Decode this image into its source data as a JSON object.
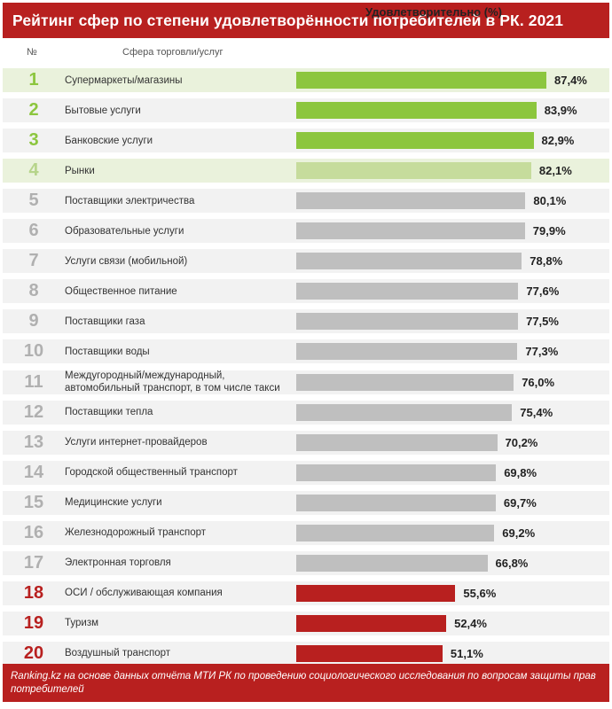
{
  "header": {
    "title": "Рейтинг сфер по степени удовлетворённости потребителей в РК. 2021"
  },
  "columns": {
    "number": "№",
    "category": "Сфера торговли/услуг",
    "value": "Удовлетворительно (%)"
  },
  "colors": {
    "header_bg": "#b8201f",
    "top_green": "#8cc63e",
    "light_green": "#c6dc9c",
    "gray_bar": "#bfbfbf",
    "red_bar": "#b8201f",
    "row_bg": "#f2f2f2",
    "row_bg_highlight": "#eaf2dc",
    "rank_green": "#8cc63e",
    "rank_light_green": "#b6d48a",
    "rank_gray": "#b0b0b0",
    "rank_red": "#b8201f"
  },
  "chart_data": {
    "type": "bar",
    "orientation": "horizontal",
    "title": "Рейтинг сфер по степени удовлетворённости потребителей в РК. 2021",
    "xlabel": "Удовлетворительно (%)",
    "ylabel": "Сфера торговли/услуг",
    "xlim": [
      0,
      100
    ],
    "grid": false,
    "ranks": [
      "1",
      "2",
      "3",
      "4",
      "5",
      "6",
      "7",
      "8",
      "9",
      "10",
      "11",
      "12",
      "13",
      "14",
      "15",
      "16",
      "17",
      "18",
      "19",
      "20"
    ],
    "categories": [
      "Супермаркеты/магазины",
      "Бытовые услуги",
      "Банковские услуги",
      "Рынки",
      "Поставщики электричества",
      "Образовательные услуги",
      "Услуги связи (мобильной)",
      "Общественное питание",
      "Поставщики газа",
      "Поставщики воды",
      "Междугородный/международный, автомобильный транспорт, в том числе такси",
      "Поставщики тепла",
      "Услуги интернет-провайдеров",
      "Городской общественный транспорт",
      "Медицинские услуги",
      "Железнодорожный транспорт",
      "Электронная торговля",
      "ОСИ / обслуживающая компания",
      "Туризм",
      "Воздушный транспорт"
    ],
    "values": [
      87.4,
      83.9,
      82.9,
      82.1,
      80.1,
      79.9,
      78.8,
      77.6,
      77.5,
      77.3,
      76.0,
      75.4,
      70.2,
      69.8,
      69.7,
      69.2,
      66.8,
      55.6,
      52.4,
      51.1
    ],
    "value_labels": [
      "87,4%",
      "83,9%",
      "82,9%",
      "82,1%",
      "80,1%",
      "79,9%",
      "78,8%",
      "77,6%",
      "77,5%",
      "77,3%",
      "76,0%",
      "75,4%",
      "70,2%",
      "69,8%",
      "69,7%",
      "69,2%",
      "66,8%",
      "55,6%",
      "52,4%",
      "51,1%"
    ],
    "tiers": [
      "green",
      "green",
      "green",
      "light",
      "gray",
      "gray",
      "gray",
      "gray",
      "gray",
      "gray",
      "gray",
      "gray",
      "gray",
      "gray",
      "gray",
      "gray",
      "gray",
      "red",
      "red",
      "red"
    ]
  },
  "footer": {
    "text": "Ranking.kz на основе данных отчёта МТИ РК по проведению социологического исследования по вопросам защиты прав потребителей"
  }
}
